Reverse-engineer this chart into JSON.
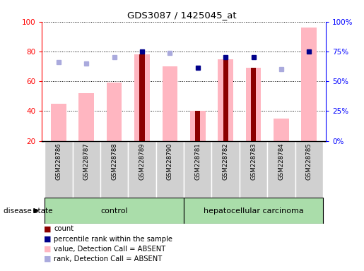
{
  "title": "GDS3087 / 1425045_at",
  "samples": [
    "GSM228786",
    "GSM228787",
    "GSM228788",
    "GSM228789",
    "GSM228790",
    "GSM228781",
    "GSM228782",
    "GSM228783",
    "GSM228784",
    "GSM228785"
  ],
  "pink_bars": [
    45,
    52,
    59,
    78,
    70,
    40,
    75,
    69,
    35,
    96
  ],
  "red_bars": [
    null,
    null,
    null,
    78,
    null,
    40,
    75,
    69,
    null,
    null
  ],
  "blue_squares": [
    null,
    null,
    null,
    80,
    null,
    69,
    76,
    76,
    null,
    80
  ],
  "light_blue_squares": [
    73,
    72,
    76,
    null,
    79,
    null,
    null,
    null,
    68,
    null
  ],
  "ylim": [
    20,
    100
  ],
  "yticks": [
    20,
    40,
    60,
    80,
    100
  ],
  "ytick_labels_left": [
    "20",
    "40",
    "60",
    "80",
    "100"
  ],
  "ytick_labels_right": [
    "0%",
    "25%",
    "50%",
    "75%",
    "100%"
  ],
  "control_label": "control",
  "cancer_label": "hepatocellular carcinoma",
  "disease_state_label": "disease state",
  "legend_items": [
    {
      "label": "count",
      "color": "#8B0000"
    },
    {
      "label": "percentile rank within the sample",
      "color": "#00008B"
    },
    {
      "label": "value, Detection Call = ABSENT",
      "color": "#FFB6C1"
    },
    {
      "label": "rank, Detection Call = ABSENT",
      "color": "#AAAADD"
    }
  ],
  "pink_color": "#FFB6C1",
  "red_color": "#8B0000",
  "blue_color": "#00008B",
  "light_blue_color": "#AAAADD",
  "control_bg": "#AADDAA",
  "cancer_bg": "#AADDAA",
  "label_bg": "#D0D0D0"
}
